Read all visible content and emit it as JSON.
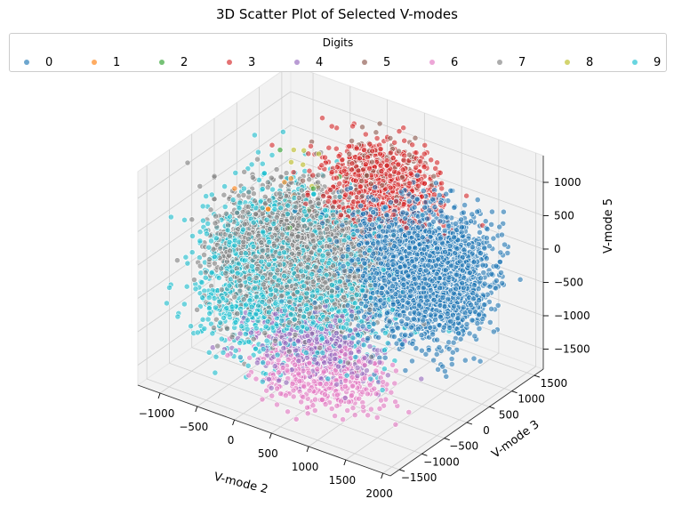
{
  "chart_data": {
    "type": "scatter",
    "title": "3D Scatter Plot of Selected V-modes",
    "xlabel": "V-mode 2",
    "ylabel": "V-mode 3",
    "zlabel": "V-mode 5",
    "xlim": [
      -1300,
      2100
    ],
    "ylim": [
      -1700,
      1700
    ],
    "zlim": [
      -1800,
      1400
    ],
    "x_ticks": [
      "−1000",
      "−500",
      "0",
      "500",
      "1000",
      "1500",
      "2000"
    ],
    "y_ticks": [
      "−1500",
      "−1000",
      "−500",
      "0",
      "500",
      "1000",
      "1500"
    ],
    "z_ticks": [
      "−1500",
      "−1000",
      "−500",
      "0",
      "500",
      "1000"
    ],
    "legend": {
      "title": "Digits",
      "placement": "top-center",
      "columns": 10
    },
    "grid": true,
    "series": [
      {
        "name": "0",
        "color": "#1f77b4",
        "cx": 1400,
        "cy": 300,
        "cz": 0,
        "sx": 430,
        "sy": 360,
        "sz": 430,
        "n": 2600
      },
      {
        "name": "1",
        "color": "#ff7f0e",
        "cx": -300,
        "cy": -100,
        "cz": 500,
        "sx": 300,
        "sy": 300,
        "sz": 300,
        "n": 6
      },
      {
        "name": "2",
        "color": "#2ca02c",
        "cx": -200,
        "cy": 0,
        "cz": 400,
        "sx": 300,
        "sy": 300,
        "sz": 300,
        "n": 6
      },
      {
        "name": "3",
        "color": "#d62728",
        "cx": 450,
        "cy": 850,
        "cz": 650,
        "sx": 360,
        "sy": 320,
        "sz": 280,
        "n": 800
      },
      {
        "name": "4",
        "color": "#9467bd",
        "cx": 300,
        "cy": -450,
        "cz": -1100,
        "sx": 380,
        "sy": 280,
        "sz": 220,
        "n": 450
      },
      {
        "name": "5",
        "color": "#8c564b",
        "cx": 350,
        "cy": 950,
        "cz": 900,
        "sx": 280,
        "sy": 250,
        "sz": 220,
        "n": 110
      },
      {
        "name": "6",
        "color": "#e377c2",
        "cx": 500,
        "cy": -650,
        "cz": -1400,
        "sx": 420,
        "sy": 300,
        "sz": 220,
        "n": 480
      },
      {
        "name": "7",
        "color": "#7f7f7f",
        "cx": -200,
        "cy": 100,
        "cz": -300,
        "sx": 450,
        "sy": 480,
        "sz": 420,
        "n": 3000
      },
      {
        "name": "8",
        "color": "#bcbd22",
        "cx": -400,
        "cy": 600,
        "cz": 700,
        "sx": 150,
        "sy": 150,
        "sz": 150,
        "n": 8
      },
      {
        "name": "9",
        "color": "#17becf",
        "cx": -250,
        "cy": 0,
        "cz": -500,
        "sx": 560,
        "sy": 560,
        "sz": 480,
        "n": 2300
      }
    ]
  }
}
